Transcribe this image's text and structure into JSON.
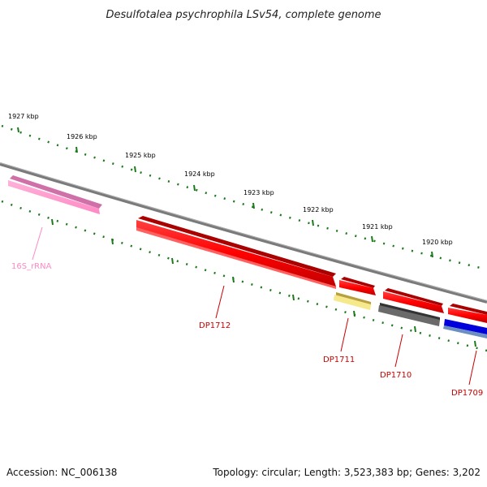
{
  "title": "Desulfotalea psychrophila LSv54, complete genome",
  "footer": {
    "accession": "Accession: NC_006138",
    "topology": "Topology: circular; Length: 3,523,383 bp; Genes: 3,202"
  },
  "ticks": [
    "1927 kbp",
    "1926 kbp",
    "1925 kbp",
    "1924 kbp",
    "1923 kbp",
    "1922 kbp",
    "1921 kbp",
    "1920 kbp"
  ],
  "genes": [
    {
      "label": "16S_rRNA",
      "color": "#ff99cc"
    },
    {
      "label": "DP1712",
      "color": "#ff0000"
    },
    {
      "label": "DP1711",
      "color": "#cc0000"
    },
    {
      "label": "DP1710",
      "color": "#cc0000"
    },
    {
      "label": "DP1709",
      "color": "#cc0000"
    }
  ],
  "colors": {
    "backbone": "#808080",
    "tick_marks": "#1a7a1a",
    "cds": "#ff0000",
    "rrna": "#ff99cc",
    "yellow_feature": "#f0e68c",
    "gray_feature": "#606060",
    "blue_feature": "#0000dd"
  }
}
